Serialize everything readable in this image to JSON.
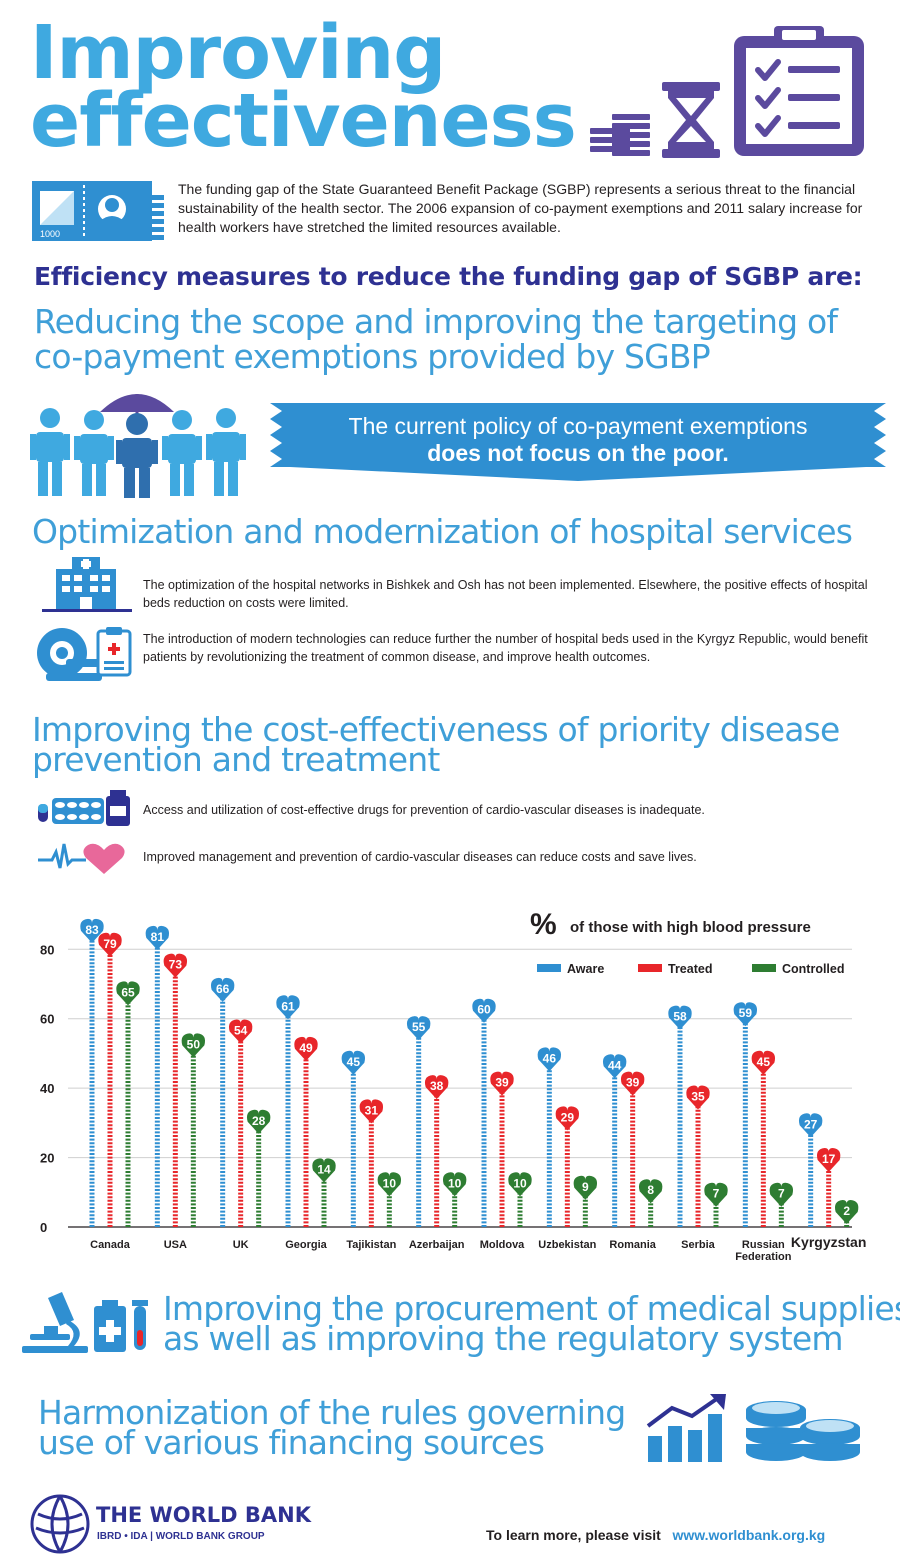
{
  "header": {
    "title_line1": "Improving",
    "title_line2": "effectiveness"
  },
  "intro": {
    "money_label": "1000",
    "text": "The funding gap of the State Guaranteed Benefit Package (SGBP) represents a serious threat to the financial sustainability of the health sector. The 2006 expansion of co-payment exemptions and 2011 salary increase for health workers have stretched the limited resources available."
  },
  "efficiency_heading": "Efficiency measures to reduce the funding gap of SGBP are:",
  "section1": {
    "title_line1": "Reducing the scope and improving the targeting of",
    "title_line2": "co-payment exemptions provided by SGBP",
    "banner_line1": "The current policy of co-payment exemptions",
    "banner_line2": "does not focus on the poor."
  },
  "section2": {
    "title": "Optimization and modernization of hospital services",
    "item1": "The optimization of the hospital networks in Bishkek and Osh has not been implemented. Elsewhere, the positive effects of hospital beds reduction on costs were limited.",
    "item2": "The introduction of modern technologies can reduce further the number of hospital beds used in the Kyrgyz Republic, would benefit patients by revolutionizing the treatment of common disease, and improve health outcomes."
  },
  "section3": {
    "title_line1": "Improving the cost-effectiveness of priority disease",
    "title_line2": "prevention and treatment",
    "item1": "Access and utilization of cost-effective drugs  for prevention of cardio-vascular diseases is inadequate.",
    "item2": "Improved management and prevention of cardio-vascular diseases can reduce costs and save lives."
  },
  "chart_data": {
    "type": "bar",
    "title_symbol": "%",
    "title": "of those with high blood pressure",
    "categories": [
      "Canada",
      "USA",
      "UK",
      "Georgia",
      "Tajikistan",
      "Azerbaijan",
      "Moldova",
      "Uzbekistan",
      "Romania",
      "Serbia",
      "Russian Federation",
      "Kyrgyzstan"
    ],
    "series": [
      {
        "name": "Aware",
        "color": "#2f8fd1",
        "values": [
          83,
          81,
          66,
          61,
          45,
          55,
          60,
          46,
          44,
          58,
          59,
          27
        ]
      },
      {
        "name": "Treated",
        "color": "#e8262a",
        "values": [
          79,
          73,
          54,
          49,
          31,
          38,
          39,
          29,
          39,
          35,
          45,
          17
        ]
      },
      {
        "name": "Controlled",
        "color": "#2e7d32",
        "values": [
          65,
          50,
          28,
          14,
          10,
          10,
          10,
          9,
          8,
          7,
          7,
          2
        ]
      }
    ],
    "yticks": [
      0,
      20,
      40,
      60,
      80
    ],
    "ylim": [
      0,
      87
    ],
    "grid": true,
    "legend_position": "top-right",
    "highlight_category": "Kyrgyzstan"
  },
  "section4": {
    "title_line1": "Improving the procurement of medical supplies",
    "title_line2": "as well as improving the regulatory system"
  },
  "section5": {
    "title_line1": "Harmonization of the rules governing",
    "title_line2": "use of various financing sources"
  },
  "footer": {
    "org_name": "THE WORLD BANK",
    "org_sub": "IBRD • IDA | WORLD BANK GROUP",
    "cta": "To learn more, please visit",
    "url": "www.worldbank.org.kg"
  },
  "colors": {
    "light_blue": "#3fa9e0",
    "navy": "#2e3192",
    "purple": "#5b4a9e",
    "aware": "#2f8fd1",
    "treated": "#e8262a",
    "controlled": "#2e7d32"
  },
  "icons": [
    "stack-of-coins-icon",
    "hourglass-icon",
    "clipboard-checklist-icon",
    "banknote-icon",
    "people-umbrella-icon",
    "hospital-icon",
    "mri-scanner-icon",
    "pills-icon",
    "heartbeat-icon",
    "microscope-icon",
    "medicine-bottles-icon",
    "growth-chart-icon",
    "coins-icon",
    "world-bank-globe-icon"
  ]
}
